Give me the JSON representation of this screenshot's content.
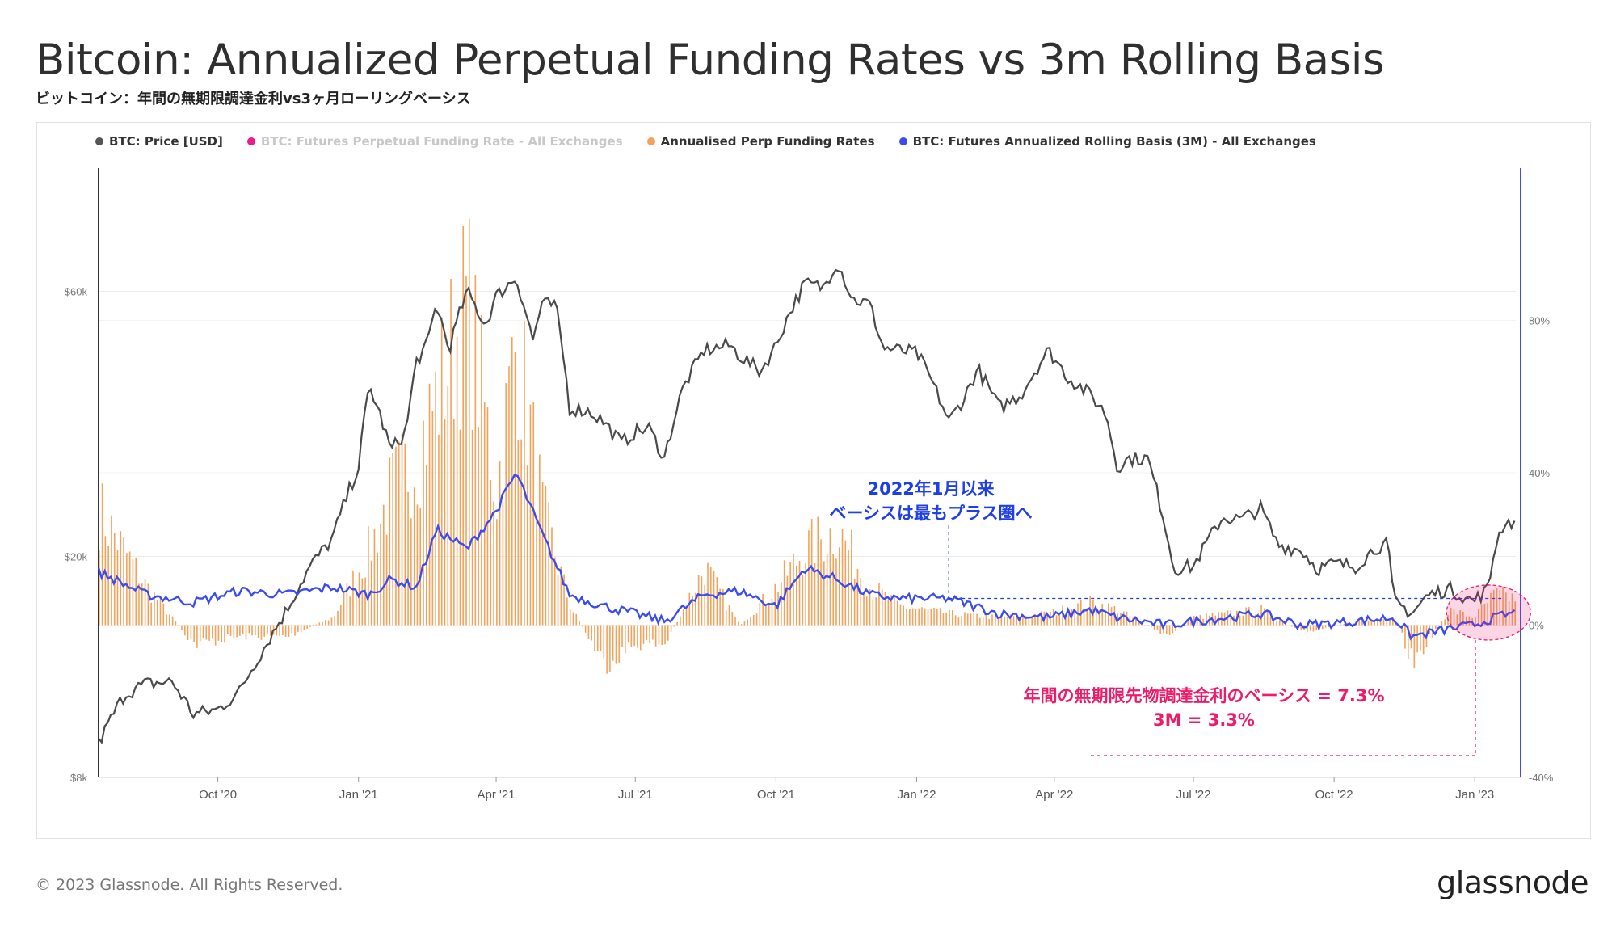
{
  "header": {
    "title": "Bitcoin: Annualized Perpetual Funding Rates vs 3m Rolling Basis",
    "subtitle": "ビットコイン：年間の無期限調達金利vs3ヶ月ローリングベーシス"
  },
  "legend": [
    {
      "label": "BTC: Price [USD]",
      "color": "#555555",
      "text_color": "#333333"
    },
    {
      "label": "BTC: Futures Perpetual Funding Rate - All Exchanges",
      "color": "#ee1a8a",
      "text_color": "#c8c8c8"
    },
    {
      "label": "Annualised Perp Funding Rates",
      "color": "#f4a259",
      "text_color": "#333333"
    },
    {
      "label": "BTC: Futures Annualized Rolling Basis (3M) - All Exchanges",
      "color": "#3a4cf0",
      "text_color": "#333333"
    }
  ],
  "annotations": {
    "blue_line1": "2022年1月以来",
    "blue_line2": "ベーシスは最もプラス圏へ",
    "pink_line1": "年間の無期限先物調達金利のベーシス = 7.3%",
    "pink_line2": "3M = 3.3%"
  },
  "footer": {
    "copyright": "© 2023 Glassnode. All Rights Reserved.",
    "logo": "glassnode"
  },
  "chart_data": {
    "type": "line",
    "x_ticks": [
      "Oct '20",
      "Jan '21",
      "Apr '21",
      "Jul '21",
      "Oct '21",
      "Jan '22",
      "Apr '22",
      "Jul '22",
      "Oct '22",
      "Jan '23"
    ],
    "y_left": {
      "scale": "log",
      "ticks": [
        "$8k",
        "$20k",
        "$60k"
      ],
      "tick_values": [
        8000,
        20000,
        60000
      ],
      "range": [
        8000,
        100000
      ]
    },
    "y_right": {
      "ticks": [
        "-40%",
        "0%",
        "40%",
        "80%"
      ],
      "tick_values": [
        -40,
        0,
        40,
        80
      ],
      "range": [
        -40,
        120
      ]
    },
    "grid": true,
    "legend_position": "top-left",
    "series": [
      {
        "name": "BTC: Price [USD]",
        "axis": "left",
        "color": "#4a4a4a",
        "x": [
          "2020-07-15",
          "2020-08-01",
          "2020-08-15",
          "2020-09-01",
          "2020-09-15",
          "2020-10-01",
          "2020-10-15",
          "2020-11-01",
          "2020-11-15",
          "2020-12-01",
          "2020-12-15",
          "2021-01-01",
          "2021-01-08",
          "2021-01-15",
          "2021-01-22",
          "2021-02-01",
          "2021-02-08",
          "2021-02-15",
          "2021-02-21",
          "2021-03-01",
          "2021-03-13",
          "2021-03-25",
          "2021-04-01",
          "2021-04-14",
          "2021-04-25",
          "2021-05-01",
          "2021-05-10",
          "2021-05-19",
          "2021-06-01",
          "2021-06-10",
          "2021-06-22",
          "2021-07-01",
          "2021-07-10",
          "2021-07-20",
          "2021-08-01",
          "2021-08-15",
          "2021-09-01",
          "2021-09-07",
          "2021-09-21",
          "2021-10-01",
          "2021-10-10",
          "2021-10-20",
          "2021-11-01",
          "2021-11-10",
          "2021-11-20",
          "2021-12-01",
          "2021-12-10",
          "2021-12-20",
          "2022-01-01",
          "2022-01-10",
          "2022-01-22",
          "2022-02-01",
          "2022-02-10",
          "2022-02-24",
          "2022-03-10",
          "2022-03-28",
          "2022-04-10",
          "2022-04-25",
          "2022-05-05",
          "2022-05-12",
          "2022-05-20",
          "2022-06-01",
          "2022-06-13",
          "2022-06-18",
          "2022-07-01",
          "2022-07-20",
          "2022-08-01",
          "2022-08-14",
          "2022-08-25",
          "2022-09-10",
          "2022-09-20",
          "2022-10-01",
          "2022-10-15",
          "2022-10-29",
          "2022-11-05",
          "2022-11-09",
          "2022-11-21",
          "2022-12-01",
          "2022-12-15",
          "2022-12-31",
          "2023-01-10",
          "2023-01-14",
          "2023-01-20",
          "2023-01-28"
        ],
        "values": [
          9200,
          11300,
          11800,
          11900,
          10400,
          10600,
          11400,
          13800,
          16000,
          19300,
          21500,
          29000,
          40500,
          36000,
          31000,
          33500,
          45000,
          48000,
          57000,
          47000,
          60000,
          52000,
          58800,
          63500,
          49000,
          57000,
          56500,
          37000,
          36500,
          35000,
          32000,
          33500,
          34000,
          30000,
          40000,
          47000,
          48000,
          46000,
          43000,
          48000,
          55000,
          62000,
          61000,
          68000,
          58000,
          57000,
          47500,
          47000,
          46500,
          41800,
          35000,
          38500,
          43500,
          37000,
          39000,
          47000,
          42000,
          39000,
          36000,
          29000,
          30000,
          30000,
          22500,
          19000,
          19200,
          23500,
          23300,
          24400,
          21000,
          20500,
          19000,
          19400,
          19200,
          20800,
          21000,
          16600,
          15800,
          17000,
          17500,
          16600,
          17500,
          20800,
          23000,
          23100
        ]
      },
      {
        "name": "Annualised Perp Funding Rates",
        "axis": "right",
        "color": "#f4a259",
        "x": [
          "2020-07-15",
          "2020-08-15",
          "2020-09-15",
          "2020-10-15",
          "2020-11-15",
          "2020-12-15",
          "2021-01-08",
          "2021-01-22",
          "2021-02-08",
          "2021-02-21",
          "2021-03-13",
          "2021-04-01",
          "2021-04-14",
          "2021-05-01",
          "2021-05-19",
          "2021-06-10",
          "2021-07-01",
          "2021-07-20",
          "2021-08-15",
          "2021-09-07",
          "2021-10-01",
          "2021-10-20",
          "2021-11-10",
          "2021-12-01",
          "2021-12-20",
          "2022-01-22",
          "2022-02-24",
          "2022-03-28",
          "2022-04-25",
          "2022-05-12",
          "2022-06-13",
          "2022-07-01",
          "2022-08-14",
          "2022-09-10",
          "2022-10-15",
          "2022-11-09",
          "2022-11-21",
          "2022-12-15",
          "2022-12-31",
          "2023-01-14",
          "2023-01-28"
        ],
        "values": [
          30,
          10,
          -5,
          -3,
          -3,
          2,
          20,
          35,
          45,
          60,
          85,
          35,
          75,
          30,
          5,
          -10,
          -5,
          -5,
          15,
          0,
          10,
          20,
          25,
          10,
          5,
          3,
          2,
          3,
          6,
          4,
          -3,
          2,
          4,
          -2,
          1,
          2,
          -10,
          4,
          2,
          8,
          7
        ]
      },
      {
        "name": "BTC: Futures Annualized Rolling Basis (3M) - All Exchanges",
        "axis": "right",
        "color": "#3a4cf0",
        "x": [
          "2020-07-15",
          "2020-08-15",
          "2020-09-15",
          "2020-10-15",
          "2020-11-15",
          "2020-12-15",
          "2021-01-08",
          "2021-01-22",
          "2021-02-08",
          "2021-02-21",
          "2021-03-13",
          "2021-04-01",
          "2021-04-14",
          "2021-05-01",
          "2021-05-19",
          "2021-06-10",
          "2021-07-01",
          "2021-07-20",
          "2021-08-15",
          "2021-09-07",
          "2021-10-01",
          "2021-10-20",
          "2021-11-10",
          "2021-12-01",
          "2021-12-20",
          "2022-01-22",
          "2022-02-24",
          "2022-03-28",
          "2022-04-25",
          "2022-05-12",
          "2022-06-13",
          "2022-07-01",
          "2022-08-14",
          "2022-09-10",
          "2022-10-15",
          "2022-11-09",
          "2022-11-21",
          "2022-12-15",
          "2022-12-31",
          "2023-01-14",
          "2023-01-28"
        ],
        "values": [
          14,
          8,
          6,
          9,
          8,
          10,
          8,
          12,
          10,
          25,
          20,
          30,
          40,
          24,
          8,
          5,
          3,
          1,
          8,
          9,
          5,
          15,
          12,
          8,
          7,
          7,
          3,
          2,
          4,
          2,
          0,
          1,
          3,
          0,
          1,
          2,
          -3,
          -1,
          0,
          2,
          3.3
        ]
      }
    ]
  }
}
